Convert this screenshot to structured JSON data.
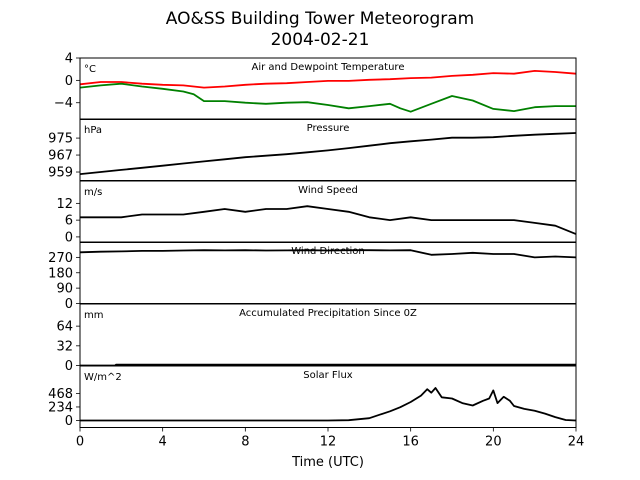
{
  "title": "AO&SS Building Tower Meteorogram",
  "date": "2004-02-21",
  "xlabel": "Time (UTC)",
  "chart_data": [
    {
      "type": "line",
      "title": "Air and Dewpoint Temperature",
      "unit": "°C",
      "ylim": [
        4,
        -7
      ],
      "yticks": [
        4,
        0,
        -4
      ],
      "xlim": [
        0,
        24
      ],
      "series": [
        {
          "color": "#ff0000",
          "x": [
            0,
            1,
            2,
            3,
            4,
            5,
            6,
            7,
            8,
            9,
            10,
            11,
            12,
            13,
            14,
            15,
            16,
            17,
            18,
            19,
            20,
            21,
            22,
            23,
            24
          ],
          "values": [
            -0.7,
            -0.3,
            -0.3,
            -0.6,
            -0.8,
            -0.9,
            -1.3,
            -1.1,
            -0.8,
            -0.6,
            -0.5,
            -0.3,
            -0.1,
            -0.1,
            0.1,
            0.2,
            0.4,
            0.5,
            0.8,
            1.0,
            1.3,
            1.2,
            1.7,
            1.5,
            1.2
          ]
        },
        {
          "color": "#008000",
          "x": [
            0,
            1,
            2,
            3,
            4,
            5,
            5.5,
            6,
            7,
            8,
            9,
            10,
            11,
            12,
            13,
            14,
            15,
            15.5,
            16,
            17,
            18,
            19,
            20,
            21,
            22,
            23,
            24
          ],
          "values": [
            -1.3,
            -0.9,
            -0.6,
            -1.1,
            -1.5,
            -2.0,
            -2.5,
            -3.7,
            -3.7,
            -4.0,
            -4.2,
            -4.0,
            -3.9,
            -4.4,
            -5.0,
            -4.6,
            -4.2,
            -5.0,
            -5.6,
            -4.2,
            -2.8,
            -3.6,
            -5.1,
            -5.5,
            -4.8,
            -4.6,
            -4.6
          ]
        }
      ]
    },
    {
      "type": "line",
      "title": "Pressure",
      "unit": "hPa",
      "ylim": [
        984,
        955
      ],
      "yticks": [
        975,
        967,
        959
      ],
      "xlim": [
        0,
        24
      ],
      "series": [
        {
          "color": "#000000",
          "x": [
            0,
            1,
            2,
            3,
            4,
            5,
            6,
            7,
            8,
            9,
            10,
            11,
            12,
            13,
            14,
            15,
            16,
            17,
            18,
            19,
            20,
            21,
            22,
            23,
            24
          ],
          "values": [
            958,
            959,
            960,
            961,
            962,
            963,
            964,
            965,
            966,
            966.7,
            967.4,
            968.3,
            969.2,
            970.3,
            971.4,
            972.6,
            973.5,
            974.3,
            975.2,
            975.2,
            975.4,
            976.1,
            976.6,
            977,
            977.4
          ]
        }
      ]
    },
    {
      "type": "line",
      "title": "Wind Speed",
      "unit": "m/s",
      "ylim": [
        20,
        -2
      ],
      "yticks": [
        12,
        6,
        0
      ],
      "xlim": [
        0,
        24
      ],
      "series": [
        {
          "color": "#000000",
          "x": [
            0,
            1,
            2,
            3,
            4,
            5,
            6,
            7,
            8,
            9,
            10,
            11,
            12,
            13,
            14,
            15,
            16,
            17,
            18,
            19,
            20,
            21,
            22,
            23,
            24
          ],
          "values": [
            7,
            7,
            7,
            8,
            8,
            8,
            9,
            10,
            9,
            10,
            10,
            11,
            10,
            9,
            7,
            6,
            7,
            6,
            6,
            6,
            6,
            6,
            5,
            4,
            1
          ]
        }
      ]
    },
    {
      "type": "line",
      "title": "Wind Direction",
      "unit": "",
      "ylim": [
        360,
        0
      ],
      "yticks": [
        270,
        180,
        90,
        0
      ],
      "xlim": [
        0,
        24
      ],
      "series": [
        {
          "color": "#000000",
          "x": [
            0,
            1,
            2,
            3,
            4,
            5,
            6,
            7,
            8,
            9,
            10,
            11,
            12,
            13,
            14,
            15,
            16,
            17,
            18,
            19,
            20,
            21,
            22,
            23,
            24
          ],
          "values": [
            300,
            303,
            305,
            308,
            308,
            310,
            312,
            311,
            312,
            310,
            311,
            312,
            310,
            312,
            312,
            311,
            312,
            285,
            290,
            297,
            290,
            290,
            270,
            275,
            270
          ]
        }
      ]
    },
    {
      "type": "line",
      "title": "Accumulated Precipitation Since 0Z",
      "unit": "mm",
      "ylim": [
        100,
        0
      ],
      "yticks": [
        64,
        32,
        0
      ],
      "xlim": [
        0,
        24
      ],
      "series": [
        {
          "color": "#000000",
          "x": [
            0,
            1.7,
            1.75,
            24
          ],
          "values": [
            0,
            0,
            1.5,
            1.5
          ]
        }
      ]
    },
    {
      "type": "line",
      "title": "Solar Flux",
      "unit": "W/m^2",
      "ylim": [
        940,
        -120
      ],
      "yticks": [
        468,
        234,
        0
      ],
      "xlim": [
        0,
        24
      ],
      "series": [
        {
          "color": "#000000",
          "x": [
            0,
            12,
            13,
            14,
            14.5,
            15,
            15.5,
            16,
            16.5,
            16.8,
            17,
            17.2,
            17.5,
            18,
            18.5,
            19,
            19.5,
            19.8,
            20,
            20.2,
            20.5,
            20.8,
            21,
            21.5,
            22,
            22.5,
            23,
            23.5,
            24
          ],
          "values": [
            0,
            0,
            5,
            40,
            100,
            160,
            230,
            320,
            430,
            540,
            480,
            560,
            400,
            380,
            300,
            260,
            340,
            380,
            520,
            300,
            410,
            340,
            250,
            200,
            170,
            120,
            60,
            10,
            0
          ]
        }
      ]
    }
  ]
}
